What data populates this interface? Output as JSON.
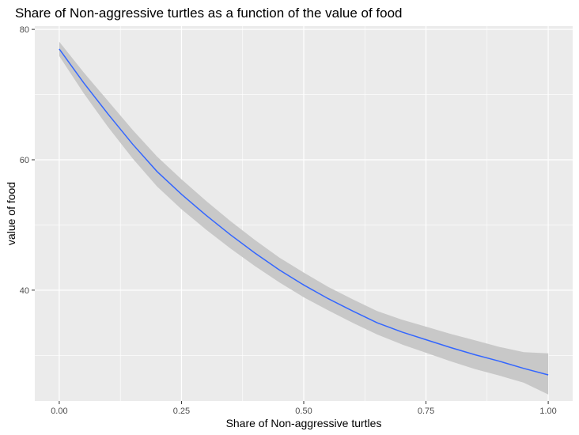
{
  "chart_data": {
    "type": "line",
    "title": "Share of Non-aggressive turtles as a function of the value of food",
    "xlabel": "Share of Non-aggressive turtles",
    "ylabel": "value of food",
    "xlim": [
      -0.05,
      1.05
    ],
    "ylim": [
      23,
      80.5
    ],
    "x_ticks": [
      0,
      0.25,
      0.5,
      0.75,
      1.0
    ],
    "x_tick_labels": [
      "0.00",
      "0.25",
      "0.50",
      "0.75",
      "1.00"
    ],
    "x_minor_ticks": [
      0.125,
      0.375,
      0.625,
      0.875
    ],
    "y_ticks": [
      40,
      60,
      80
    ],
    "y_tick_labels": [
      "40",
      "60",
      "80"
    ],
    "y_minor_ticks": [
      30,
      50,
      70
    ],
    "grid": true,
    "legend": "none",
    "colors": {
      "line": "#3366ff",
      "ribbon": "#c8c8c8",
      "panel": "#ebebeb",
      "grid": "#ffffff"
    },
    "series": [
      {
        "x": [
          0.0,
          0.05,
          0.1,
          0.15,
          0.2,
          0.25,
          0.3,
          0.35,
          0.4,
          0.45,
          0.5,
          0.55,
          0.6,
          0.65,
          0.7,
          0.75,
          0.8,
          0.85,
          0.9,
          0.95,
          1.0
        ],
        "y": [
          77.0,
          71.8,
          67.0,
          62.4,
          58.2,
          54.7,
          51.5,
          48.5,
          45.7,
          43.1,
          40.8,
          38.7,
          36.8,
          35.0,
          33.6,
          32.4,
          31.2,
          30.1,
          29.1,
          28.0,
          27.0
        ],
        "lower": [
          75.9,
          70.2,
          65.0,
          60.2,
          55.9,
          52.4,
          49.3,
          46.4,
          43.7,
          41.2,
          38.9,
          36.9,
          35.0,
          33.2,
          31.7,
          30.4,
          29.1,
          27.9,
          26.9,
          25.8,
          24.0
        ],
        "upper": [
          78.1,
          73.4,
          69.0,
          64.6,
          60.5,
          57.0,
          53.7,
          50.6,
          47.7,
          45.0,
          42.7,
          40.5,
          38.6,
          36.8,
          35.5,
          34.4,
          33.3,
          32.3,
          31.3,
          30.5,
          30.3
        ]
      }
    ]
  }
}
